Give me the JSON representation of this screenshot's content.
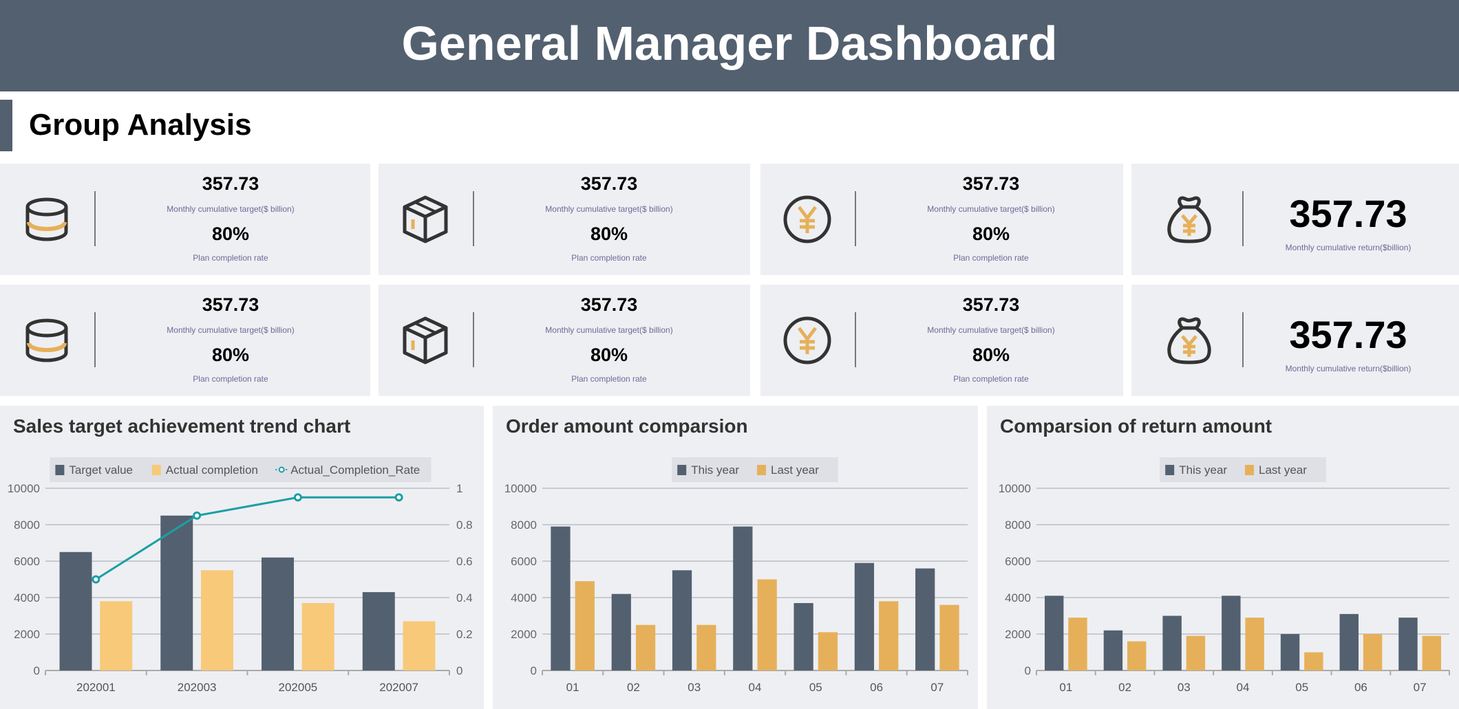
{
  "header": {
    "title": "General Manager Dashboard"
  },
  "section": {
    "title": "Group Analysis"
  },
  "colors": {
    "header": "#536070",
    "dark": "#536070",
    "yellow_light": "#F7C979",
    "yellow": "#E6B05A",
    "teal": "#1A9FA5"
  },
  "cards": [
    {
      "icon": "database-icon",
      "value": "357.73",
      "value_label": "Monthly cumulative target($ billion)",
      "rate": "80%",
      "rate_label": "Plan completion rate"
    },
    {
      "icon": "package-icon",
      "value": "357.73",
      "value_label": "Monthly cumulative target($ billion)",
      "rate": "80%",
      "rate_label": "Plan completion rate"
    },
    {
      "icon": "yen-coin-icon",
      "value": "357.73",
      "value_label": "Monthly cumulative target($ billion)",
      "rate": "80%",
      "rate_label": "Plan completion rate"
    },
    {
      "icon": "money-bag-icon",
      "value": "357.73",
      "value_label": "Monthly cumulative return($billion)"
    },
    {
      "icon": "database-icon",
      "value": "357.73",
      "value_label": "Monthly cumulative target($ billion)",
      "rate": "80%",
      "rate_label": "Plan completion rate"
    },
    {
      "icon": "package-icon",
      "value": "357.73",
      "value_label": "Monthly cumulative target($ billion)",
      "rate": "80%",
      "rate_label": "Plan completion rate"
    },
    {
      "icon": "yen-coin-icon",
      "value": "357.73",
      "value_label": "Monthly cumulative target($ billion)",
      "rate": "80%",
      "rate_label": "Plan completion rate"
    },
    {
      "icon": "money-bag-icon",
      "value": "357.73",
      "value_label": "Monthly cumulative return($billion)"
    }
  ],
  "chart_data": [
    {
      "type": "bar",
      "title": "Sales target achievement trend chart",
      "categories": [
        "202001",
        "202003",
        "202005",
        "202007"
      ],
      "ylim": [
        0,
        10000
      ],
      "yticks": [
        "0",
        "2000",
        "4000",
        "6000",
        "8000",
        "10000"
      ],
      "y2lim": [
        0,
        1
      ],
      "y2ticks": [
        "0",
        "0.2",
        "0.4",
        "0.6",
        "0.8",
        "1"
      ],
      "grid": true,
      "legend": "top",
      "series": [
        {
          "name": "Target value",
          "type": "bar",
          "color": "#536070",
          "values": [
            6500,
            8500,
            6200,
            4300
          ]
        },
        {
          "name": "Actual completion",
          "type": "bar",
          "color": "#F7C979",
          "values": [
            3800,
            5500,
            3700,
            2700
          ]
        },
        {
          "name": "Actual_Completion_Rate",
          "type": "line",
          "axis": "right",
          "color": "#1A9FA5",
          "values": [
            0.5,
            0.85,
            0.95,
            0.95
          ]
        }
      ]
    },
    {
      "type": "bar",
      "title": "Order amount comparsion",
      "categories": [
        "01",
        "02",
        "03",
        "04",
        "05",
        "06",
        "07"
      ],
      "ylim": [
        0,
        10000
      ],
      "yticks": [
        "0",
        "2000",
        "4000",
        "6000",
        "8000",
        "10000"
      ],
      "grid": true,
      "legend": "top",
      "series": [
        {
          "name": "This year",
          "type": "bar",
          "color": "#536070",
          "values": [
            7900,
            4200,
            5500,
            7900,
            3700,
            5900,
            5600
          ]
        },
        {
          "name": "Last year",
          "type": "bar",
          "color": "#E6B05A",
          "values": [
            4900,
            2500,
            2500,
            5000,
            2100,
            3800,
            3600
          ]
        }
      ]
    },
    {
      "type": "bar",
      "title": "Comparsion of return amount",
      "categories": [
        "01",
        "02",
        "03",
        "04",
        "05",
        "06",
        "07"
      ],
      "ylim": [
        0,
        10000
      ],
      "yticks": [
        "0",
        "2000",
        "4000",
        "6000",
        "8000",
        "10000"
      ],
      "grid": true,
      "legend": "top",
      "series": [
        {
          "name": "This year",
          "type": "bar",
          "color": "#536070",
          "values": [
            4100,
            2200,
            3000,
            4100,
            2000,
            3100,
            2900
          ]
        },
        {
          "name": "Last year",
          "type": "bar",
          "color": "#E6B05A",
          "values": [
            2900,
            1600,
            1900,
            2900,
            1000,
            2000,
            1900
          ]
        }
      ]
    }
  ]
}
